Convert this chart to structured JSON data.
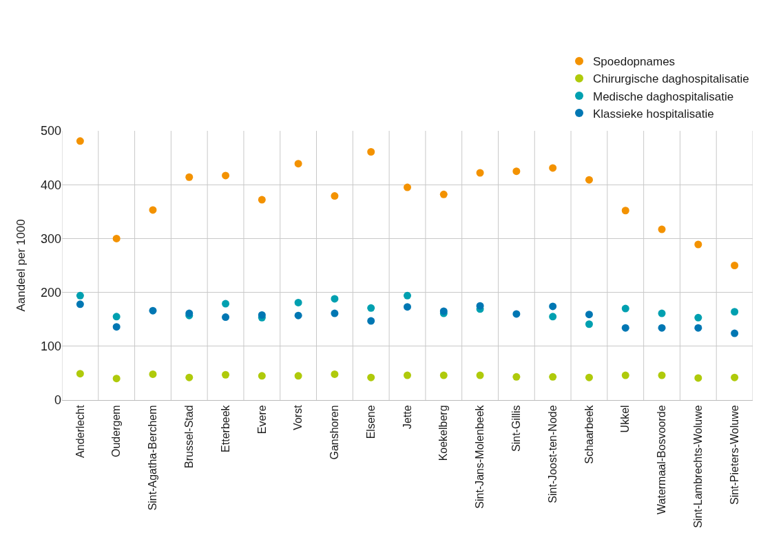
{
  "chart_data": {
    "type": "scatter",
    "ylabel": "Aandeel per 1000",
    "categories": [
      "Anderlecht",
      "Oudergem",
      "Sint-Agatha-Berchem",
      "Brussel-Stad",
      "Etterbeek",
      "Evere",
      "Vorst",
      "Ganshoren",
      "Elsene",
      "Jette",
      "Koekelberg",
      "Sint-Jans-Molenbeek",
      "Sint-Gillis",
      "Sint-Joost-ten-Node",
      "Schaarbeek",
      "Ukkel",
      "Watermaal-Bosvoorde",
      "Sint-Lambrechts-Woluwe",
      "Sint-Pieters-Woluwe"
    ],
    "series": [
      {
        "name": "Spoedopnames",
        "color": "#f39200",
        "values": [
          481,
          300,
          353,
          414,
          417,
          372,
          439,
          379,
          461,
          395,
          382,
          422,
          425,
          431,
          409,
          352,
          317,
          289,
          250
        ]
      },
      {
        "name": "Chirurgische daghospitalisatie",
        "color": "#afca0b",
        "values": [
          49,
          40,
          48,
          42,
          47,
          45,
          45,
          48,
          42,
          46,
          46,
          46,
          43,
          43,
          42,
          46,
          46,
          41,
          42
        ]
      },
      {
        "name": "Medische daghospitalisatie",
        "color": "#00a0b0",
        "values": [
          194,
          155,
          null,
          157,
          179,
          153,
          181,
          188,
          171,
          194,
          161,
          169,
          null,
          155,
          141,
          170,
          161,
          153,
          164
        ]
      },
      {
        "name": "Klassieke hospitalisatie",
        "color": "#0077b3",
        "values": [
          178,
          136,
          166,
          161,
          154,
          158,
          157,
          161,
          147,
          173,
          165,
          175,
          160,
          174,
          159,
          134,
          134,
          134,
          124
        ]
      }
    ],
    "ylim": [
      0,
      500
    ],
    "yticks": [
      0,
      100,
      200,
      300,
      400,
      500
    ],
    "grid": true,
    "legend": "top right",
    "marker": "circle"
  }
}
